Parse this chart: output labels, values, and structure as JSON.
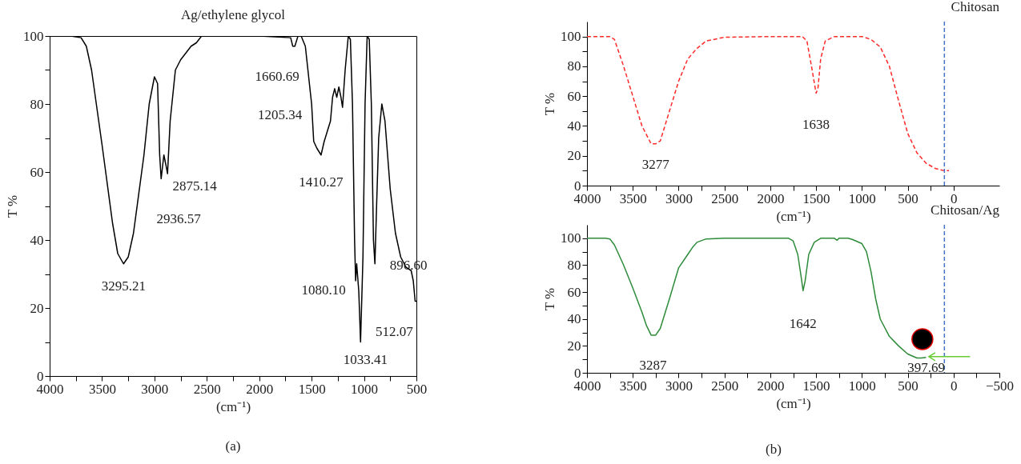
{
  "chart_data": [
    {
      "type": "line",
      "title": "Ag/ethylene glycol",
      "xlabel": "(cm⁻¹)",
      "ylabel": "T %",
      "xlim": [
        4000,
        500
      ],
      "ylim": [
        0,
        100
      ],
      "xticks": [
        4000,
        {
          "value": 3750,
          "label": null
        },
        3500,
        {
          "value": 3250,
          "label": null
        },
        3000,
        {
          "value": 2750,
          "label": null
        },
        2500,
        {
          "value": 2250,
          "label": null
        },
        2000,
        {
          "value": 1750,
          "label": null
        },
        1500,
        {
          "value": 1250,
          "label": null
        },
        1000,
        {
          "value": 750,
          "label": null
        },
        500
      ],
      "yticks": [
        0,
        {
          "value": 10,
          "label": null
        },
        20,
        {
          "value": 30,
          "label": null
        },
        40,
        {
          "value": 50,
          "label": null
        },
        60,
        {
          "value": 70,
          "label": null
        },
        80,
        {
          "value": 90,
          "label": null
        },
        100
      ],
      "grid": false,
      "marker": "none",
      "line_style": "solid",
      "x": [
        4000,
        3800,
        3700,
        3650,
        3600,
        3500,
        3400,
        3350,
        3295,
        3250,
        3200,
        3100,
        3050,
        3000,
        2970,
        2950,
        2936,
        2910,
        2890,
        2875,
        2850,
        2800,
        2750,
        2700,
        2650,
        2600,
        2550,
        2000,
        1700,
        1680,
        1660,
        1630,
        1600,
        1560,
        1500,
        1480,
        1450,
        1410,
        1380,
        1350,
        1320,
        1300,
        1280,
        1260,
        1240,
        1220,
        1205,
        1180,
        1150,
        1130,
        1110,
        1090,
        1080,
        1070,
        1050,
        1033,
        1010,
        990,
        970,
        950,
        930,
        910,
        896,
        880,
        860,
        830,
        800,
        750,
        700,
        650,
        600,
        550,
        530,
        512,
        500
      ],
      "series": [
        {
          "color": "#000000",
          "values": [
            100,
            100,
            99.5,
            97,
            90,
            68,
            45,
            36,
            33,
            35,
            42,
            65,
            80,
            88,
            86,
            65,
            58,
            65,
            62,
            59.5,
            75,
            90,
            93,
            95,
            97,
            98,
            100,
            100,
            99.5,
            97,
            97,
            100,
            100,
            97,
            80,
            69,
            67,
            65,
            69,
            72,
            75,
            82,
            84.5,
            82,
            85,
            82,
            79,
            90,
            100,
            99,
            80,
            40,
            28,
            33,
            25,
            10,
            35,
            80,
            100,
            99,
            80,
            40,
            33,
            50,
            70,
            80,
            75,
            55,
            42,
            35,
            32,
            31,
            28,
            22,
            22
          ]
        }
      ],
      "annotations": [
        {
          "text": "3295.21",
          "x": 3295,
          "y": 33
        },
        {
          "text": "2936.57",
          "x": 2936,
          "y": 58
        },
        {
          "text": "2875.14",
          "x": 2875,
          "y": 59.5
        },
        {
          "text": "1660.69",
          "x": 1660,
          "y": 97
        },
        {
          "text": "1205.34",
          "x": 1205,
          "y": 79
        },
        {
          "text": "1410.27",
          "x": 1410,
          "y": 65
        },
        {
          "text": "1080.10",
          "x": 1080,
          "y": 28
        },
        {
          "text": "896.60",
          "x": 896,
          "y": 33
        },
        {
          "text": "1033.41",
          "x": 1033,
          "y": 10
        },
        {
          "text": "512.07",
          "x": 512,
          "y": 22
        },
        "(a)"
      ]
    },
    {
      "type": "line",
      "title": "Chitosan",
      "xlabel": "(cm⁻¹)",
      "ylabel": "T %",
      "xlim": [
        4000,
        -500
      ],
      "ylim": [
        0,
        110
      ],
      "xticks": [
        4000,
        {
          "value": 3750,
          "label": null
        },
        3500,
        {
          "value": 3250,
          "label": null
        },
        3000,
        {
          "value": 2750,
          "label": null
        },
        2500,
        {
          "value": 2250,
          "label": null
        },
        2000,
        {
          "value": 1750,
          "label": null
        },
        1500,
        {
          "value": 1250,
          "label": null
        },
        1000,
        {
          "value": 750,
          "label": null
        },
        500,
        {
          "value": 250,
          "label": null
        },
        0
      ],
      "yticks": [
        0,
        {
          "value": 10,
          "label": null
        },
        20,
        {
          "value": 30,
          "label": null
        },
        40,
        {
          "value": 50,
          "label": null
        },
        60,
        {
          "value": 70,
          "label": null
        },
        80,
        {
          "value": 90,
          "label": null
        },
        100
      ],
      "grid": false,
      "marker": "none",
      "line_style": "dashed",
      "x": [
        4000,
        3750,
        3700,
        3600,
        3500,
        3400,
        3300,
        3250,
        3200,
        3100,
        3000,
        2900,
        2800,
        2700,
        2500,
        2000,
        1650,
        1600,
        1550,
        1500,
        1480,
        1450,
        1400,
        1300,
        1000,
        900,
        800,
        700,
        600,
        500,
        400,
        300,
        200,
        100,
        50
      ],
      "series": [
        {
          "color": "#ff2a2a",
          "values": [
            100,
            100,
            98,
            80,
            60,
            40,
            28,
            28,
            30,
            50,
            70,
            85,
            92,
            97,
            99.5,
            100,
            100,
            97,
            80,
            62,
            65,
            85,
            97,
            100,
            100,
            98,
            93,
            80,
            57,
            35,
            22,
            15,
            11.5,
            10,
            10
          ]
        }
      ],
      "ref_lines": [
        {
          "axis": "x",
          "value": 100,
          "color": "#4472c4",
          "line_style": "dashed"
        }
      ],
      "annotations": [
        {
          "text": "3277",
          "x": 3250,
          "y": 28
        },
        {
          "text": "1638",
          "x": 1500,
          "y": 62
        }
      ]
    },
    {
      "type": "line",
      "title": "Chitosan/Ag",
      "xlabel": "(cm⁻¹)",
      "ylabel": "T %",
      "xlim": [
        4000,
        -500
      ],
      "ylim": [
        0,
        110
      ],
      "xticks": [
        4000,
        {
          "value": 3750,
          "label": null
        },
        3500,
        {
          "value": 3250,
          "label": null
        },
        3000,
        {
          "value": 2750,
          "label": null
        },
        2500,
        {
          "value": 2250,
          "label": null
        },
        2000,
        {
          "value": 1750,
          "label": null
        },
        1500,
        {
          "value": 1250,
          "label": null
        },
        1000,
        {
          "value": 750,
          "label": null
        },
        500,
        {
          "value": 250,
          "label": null
        },
        0,
        {
          "value": -250,
          "label": null
        },
        {
          "value": -500,
          "label": "−500"
        }
      ],
      "yticks": [
        0,
        {
          "value": 10,
          "label": null
        },
        20,
        {
          "value": 30,
          "label": null
        },
        40,
        {
          "value": 50,
          "label": null
        },
        60,
        {
          "value": 70,
          "label": null
        },
        80,
        {
          "value": 90,
          "label": null
        },
        100
      ],
      "grid": false,
      "marker": "none",
      "line_style": "solid",
      "x": [
        4000,
        3800,
        3750,
        3700,
        3600,
        3500,
        3400,
        3350,
        3300,
        3250,
        3200,
        3100,
        3000,
        2900,
        2850,
        2800,
        2700,
        2500,
        1800,
        1750,
        1700,
        1660,
        1642,
        1620,
        1580,
        1520,
        1450,
        1300,
        1270,
        1250,
        1150,
        1100,
        1000,
        950,
        900,
        850,
        800,
        700,
        600,
        500,
        400,
        350,
        300
      ],
      "series": [
        {
          "color": "#2e8b3a",
          "values": [
            100,
            100,
            99.5,
            95,
            80,
            63,
            45,
            35,
            28,
            28,
            33,
            55,
            78,
            88,
            93,
            97,
            99.5,
            100,
            100,
            98,
            88,
            70,
            61,
            68,
            88,
            97,
            100,
            100,
            98.5,
            100,
            100,
            99,
            96,
            90,
            75,
            55,
            40,
            27,
            20,
            14,
            11,
            11,
            11.5
          ]
        }
      ],
      "ref_lines": [
        {
          "axis": "x",
          "value": 100,
          "color": "#4472c4",
          "line_style": "dashed"
        }
      ],
      "annotations": [
        {
          "text": "3287",
          "x": 3280,
          "y": 28
        },
        {
          "text": "1642",
          "x": 1642,
          "y": 61
        },
        {
          "text": "397.69",
          "x": 350,
          "y": 11
        },
        "(b)"
      ]
    }
  ]
}
